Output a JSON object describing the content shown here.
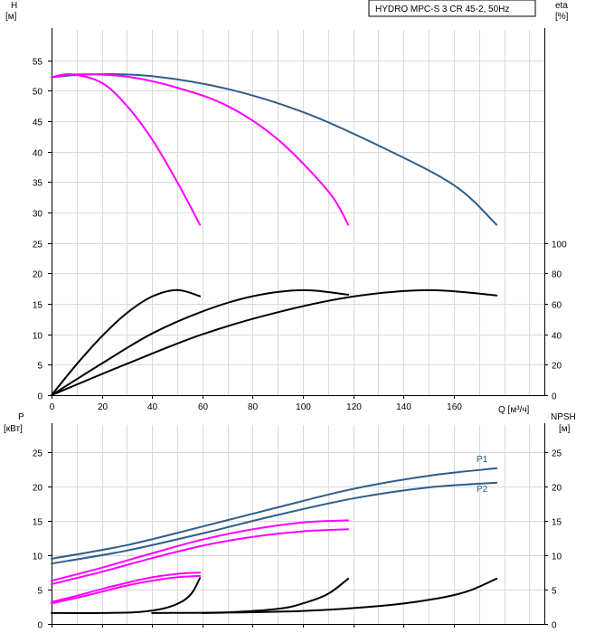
{
  "model_label": "HYDRO MPC-S 3 CR 45-2, 50Hz",
  "colors": {
    "blue": "#2f5d8a",
    "magenta": "#ff00ff",
    "black": "#000000",
    "grey": "#7a7a7a",
    "grid": "#d9d9d9"
  },
  "chart_data": [
    {
      "type": "line",
      "title": "",
      "x_axis": {
        "label": "Q [м³/ч]",
        "range": [
          0,
          196
        ],
        "ticks": [
          0,
          20,
          40,
          60,
          80,
          100,
          120,
          140,
          160
        ]
      },
      "y_axis_left": {
        "label_line1": "H",
        "label_line2": "[м]",
        "range": [
          0,
          60
        ],
        "ticks": [
          0,
          5,
          10,
          15,
          20,
          25,
          30,
          35,
          40,
          45,
          50,
          55
        ]
      },
      "y_axis_right": {
        "label_line1": "eta",
        "label_line2": "[%]",
        "range": [
          0,
          240
        ],
        "ticks": [
          0,
          20,
          40,
          60,
          80,
          100
        ]
      },
      "grid": true,
      "series": [
        {
          "axis": "left",
          "color": "blue",
          "points": [
            [
              0,
              52.2
            ],
            [
              15,
              52.7
            ],
            [
              40,
              52.4
            ],
            [
              70,
              50.3
            ],
            [
              100,
              46.5
            ],
            [
              130,
              41.0
            ],
            [
              160,
              34.5
            ],
            [
              177,
              28.0
            ]
          ]
        },
        {
          "axis": "left",
          "color": "magenta",
          "points": [
            [
              0,
              52.2
            ],
            [
              10,
              52.7
            ],
            [
              30,
              52.3
            ],
            [
              50,
              50.5
            ],
            [
              70,
              47.5
            ],
            [
              90,
              42.0
            ],
            [
              110,
              33.5
            ],
            [
              118,
              28.0
            ]
          ]
        },
        {
          "axis": "left",
          "color": "magenta",
          "points": [
            [
              0,
              52.2
            ],
            [
              8,
              52.7
            ],
            [
              20,
              51.3
            ],
            [
              30,
              47.5
            ],
            [
              40,
              42.0
            ],
            [
              50,
              35.0
            ],
            [
              59,
              28.0
            ]
          ]
        },
        {
          "axis": "right",
          "color": "black",
          "points": [
            [
              0,
              0
            ],
            [
              10,
              20.3
            ],
            [
              20,
              38.7
            ],
            [
              30,
              54.0
            ],
            [
              40,
              64.8
            ],
            [
              50,
              69.1
            ],
            [
              59,
              65.0
            ]
          ]
        },
        {
          "axis": "right",
          "color": "black",
          "points": [
            [
              0,
              0
            ],
            [
              20,
              20.8
            ],
            [
              40,
              40.5
            ],
            [
              60,
              55.0
            ],
            [
              80,
              65.0
            ],
            [
              100,
              69.0
            ],
            [
              118,
              66.0
            ]
          ]
        },
        {
          "axis": "right",
          "color": "black",
          "points": [
            [
              0,
              0
            ],
            [
              30,
              20.6
            ],
            [
              60,
              40.0
            ],
            [
              90,
              54.5
            ],
            [
              120,
              64.8
            ],
            [
              150,
              69.0
            ],
            [
              177,
              65.5
            ]
          ]
        }
      ]
    },
    {
      "type": "line",
      "title": "",
      "x_axis": {
        "range": [
          0,
          196
        ]
      },
      "y_axis_left": {
        "label_line1": "P",
        "label_line2": "[кВт]",
        "range": [
          0,
          29
        ],
        "ticks": [
          0,
          5,
          10,
          15,
          20,
          25
        ]
      },
      "y_axis_right": {
        "label_line1": "NPSH",
        "label_line2": "[м]",
        "range": [
          0,
          29
        ],
        "ticks": [
          0,
          5,
          10,
          15,
          20,
          25
        ]
      },
      "grid": true,
      "series": [
        {
          "name": "P1",
          "axis": "left",
          "color": "blue",
          "points": [
            [
              0,
              9.5
            ],
            [
              30,
              11.5
            ],
            [
              60,
              14.2
            ],
            [
              90,
              17.0
            ],
            [
              120,
              19.7
            ],
            [
              150,
              21.6
            ],
            [
              177,
              22.7
            ]
          ]
        },
        {
          "name": "P2",
          "axis": "left",
          "color": "blue",
          "points": [
            [
              0,
              8.8
            ],
            [
              30,
              10.7
            ],
            [
              60,
              13.2
            ],
            [
              90,
              15.9
            ],
            [
              120,
              18.3
            ],
            [
              150,
              19.9
            ],
            [
              177,
              20.6
            ]
          ]
        },
        {
          "axis": "left",
          "color": "magenta",
          "points": [
            [
              0,
              6.3
            ],
            [
              20,
              8.2
            ],
            [
              40,
              10.3
            ],
            [
              60,
              12.3
            ],
            [
              80,
              13.8
            ],
            [
              100,
              14.8
            ],
            [
              118,
              15.1
            ]
          ]
        },
        {
          "axis": "left",
          "color": "magenta",
          "points": [
            [
              0,
              5.8
            ],
            [
              20,
              7.6
            ],
            [
              40,
              9.6
            ],
            [
              60,
              11.4
            ],
            [
              80,
              12.7
            ],
            [
              100,
              13.5
            ],
            [
              118,
              13.8
            ]
          ]
        },
        {
          "axis": "left",
          "color": "magenta",
          "points": [
            [
              0,
              3.2
            ],
            [
              10,
              4.1
            ],
            [
              20,
              5.1
            ],
            [
              30,
              6.0
            ],
            [
              40,
              6.8
            ],
            [
              50,
              7.3
            ],
            [
              59,
              7.5
            ]
          ]
        },
        {
          "axis": "left",
          "color": "magenta",
          "points": [
            [
              0,
              3.0
            ],
            [
              10,
              3.8
            ],
            [
              20,
              4.7
            ],
            [
              30,
              5.6
            ],
            [
              40,
              6.3
            ],
            [
              50,
              6.8
            ],
            [
              59,
              7.0
            ]
          ]
        },
        {
          "axis": "right",
          "color": "black",
          "points": [
            [
              0,
              1.6
            ],
            [
              20,
              1.6
            ],
            [
              35,
              1.75
            ],
            [
              45,
              2.3
            ],
            [
              52,
              3.3
            ],
            [
              56,
              4.6
            ],
            [
              59,
              6.7
            ]
          ]
        },
        {
          "axis": "right",
          "color": "black",
          "points": [
            [
              40,
              1.6
            ],
            [
              70,
              1.7
            ],
            [
              90,
              2.2
            ],
            [
              100,
              3.0
            ],
            [
              110,
              4.4
            ],
            [
              118,
              6.6
            ]
          ]
        },
        {
          "axis": "right",
          "color": "black",
          "points": [
            [
              60,
              1.6
            ],
            [
              100,
              1.9
            ],
            [
              130,
              2.6
            ],
            [
              150,
              3.5
            ],
            [
              165,
              4.7
            ],
            [
              177,
              6.6
            ]
          ]
        }
      ]
    }
  ]
}
